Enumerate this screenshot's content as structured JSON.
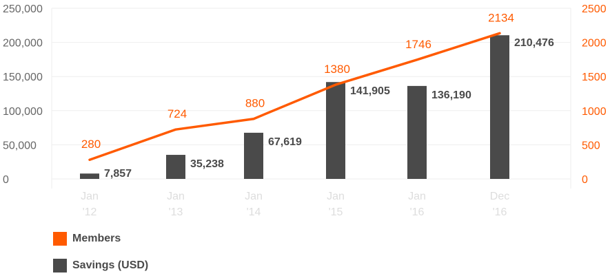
{
  "chart_data": {
    "type": "bar+line",
    "categories": [
      [
        "Jan",
        "'12"
      ],
      [
        "Jan",
        "'13"
      ],
      [
        "Jan",
        "'14"
      ],
      [
        "Jan",
        "'15"
      ],
      [
        "Jan",
        "'16"
      ],
      [
        "Dec",
        "'16"
      ]
    ],
    "series": [
      {
        "name": "Savings (USD)",
        "type": "bar",
        "axis": "left",
        "color": "#4a4a4a",
        "values": [
          7857,
          35238,
          67619,
          141905,
          136190,
          210476
        ],
        "labels": [
          "7,857",
          "35,238",
          "67,619",
          "141,905",
          "136,190",
          "210,476"
        ]
      },
      {
        "name": "Members",
        "type": "line",
        "axis": "right",
        "color": "#ff5a00",
        "values": [
          280,
          724,
          880,
          1380,
          1746,
          2134
        ],
        "labels": [
          "280",
          "724",
          "880",
          "1380",
          "1746",
          "2134"
        ]
      }
    ],
    "y_left": {
      "range": [
        0,
        250000
      ],
      "ticks": [
        0,
        50000,
        100000,
        150000,
        200000,
        250000
      ],
      "tick_labels": [
        "0",
        "50,000",
        "100,000",
        "150,000",
        "200,000",
        "250,000"
      ]
    },
    "y_right": {
      "range": [
        0,
        2500
      ],
      "ticks": [
        0,
        500,
        1000,
        1500,
        2000,
        2500
      ],
      "tick_labels": [
        "0",
        "500",
        "1000",
        "1500",
        "2000",
        "2500"
      ],
      "color": "#ff5a00"
    },
    "grid": true,
    "legend_position": "bottom-left"
  },
  "legend": [
    {
      "label": "Members",
      "color": "#ff5a00"
    },
    {
      "label": "Savings (USD)",
      "color": "#4a4a4a"
    }
  ],
  "colors": {
    "grid": "#eeeeee",
    "axis_text": "#666666",
    "category_text": "#dddddd"
  }
}
